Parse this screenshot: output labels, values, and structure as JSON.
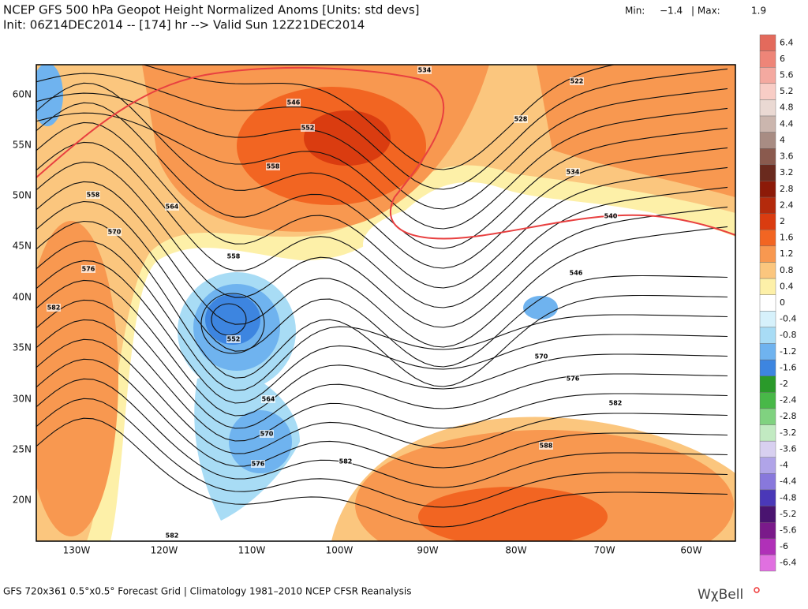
{
  "header": {
    "title": "NCEP GFS 500 hPa Geopot Height Normalized Anoms [Units: std devs]",
    "subtitle": "Init: 06Z14DEC2014 -- [174] hr --> Valid Sun 12Z21DEC2014",
    "min_label": "Min:",
    "min": "−1.4",
    "max_label": "| Max:",
    "max": "1.9"
  },
  "map": {
    "lat_labels": [
      "60N",
      "55N",
      "50N",
      "45N",
      "40N",
      "35N",
      "30N",
      "25N",
      "20N"
    ],
    "lon_labels": [
      "130W",
      "120W",
      "110W",
      "100W",
      "90W",
      "80W",
      "70W",
      "60W"
    ],
    "contour_labels": [
      "534",
      "522",
      "546",
      "552",
      "528",
      "558",
      "534",
      "558",
      "564",
      "540",
      "570",
      "558",
      "576",
      "546",
      "582",
      "552",
      "570",
      "576",
      "564",
      "582",
      "570",
      "588",
      "576",
      "582",
      "582"
    ]
  },
  "legend": {
    "entries": [
      {
        "label": "6.4",
        "color": "#e36a5c"
      },
      {
        "label": "6",
        "color": "#ee8578"
      },
      {
        "label": "5.6",
        "color": "#f4a9a0"
      },
      {
        "label": "5.2",
        "color": "#f8cdc6"
      },
      {
        "label": "4.8",
        "color": "#ead9d3"
      },
      {
        "label": "4.4",
        "color": "#cbb6ae"
      },
      {
        "label": "4",
        "color": "#a88c83"
      },
      {
        "label": "3.6",
        "color": "#8a5a4e"
      },
      {
        "label": "3.2",
        "color": "#6a2a1e"
      },
      {
        "label": "2.8",
        "color": "#8c1a08"
      },
      {
        "label": "2.4",
        "color": "#b42a0c"
      },
      {
        "label": "2",
        "color": "#da3c10"
      },
      {
        "label": "1.6",
        "color": "#f26522"
      },
      {
        "label": "1.2",
        "color": "#f89850"
      },
      {
        "label": "0.8",
        "color": "#fbc67e"
      },
      {
        "label": "0.4",
        "color": "#fdf0a8"
      },
      {
        "label": "0",
        "color": "#ffffff"
      },
      {
        "label": "-0.4",
        "color": "#d6f1fb"
      },
      {
        "label": "-0.8",
        "color": "#a8dcf5"
      },
      {
        "label": "-1.2",
        "color": "#6fb3ef"
      },
      {
        "label": "-1.6",
        "color": "#3d85e0"
      },
      {
        "label": "-2",
        "color": "#2a9a2a"
      },
      {
        "label": "-2.4",
        "color": "#48b848"
      },
      {
        "label": "-2.8",
        "color": "#80d280"
      },
      {
        "label": "-3.2",
        "color": "#c2eac2"
      },
      {
        "label": "-3.6",
        "color": "#d8d0f0"
      },
      {
        "label": "-4",
        "color": "#b0a4e8"
      },
      {
        "label": "-4.4",
        "color": "#8878dc"
      },
      {
        "label": "-4.8",
        "color": "#4a38b8"
      },
      {
        "label": "-5.2",
        "color": "#4a1470"
      },
      {
        "label": "-5.6",
        "color": "#7a1a8a"
      },
      {
        "label": "-6",
        "color": "#b030b8"
      },
      {
        "label": "-6.4",
        "color": "#e070e0"
      }
    ]
  },
  "footer": {
    "source": "GFS 720x361 0.5°x0.5° Forecast Grid | Climatology 1981–2010 NCEP CFSR Reanalysis",
    "logo": "WχBell"
  }
}
